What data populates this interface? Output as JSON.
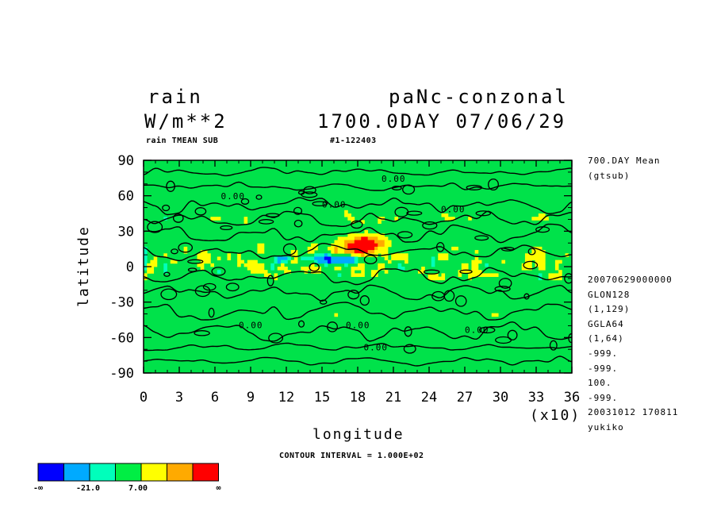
{
  "header": {
    "var_name": "rain",
    "units": "W/m**2",
    "run_name": "paNc-conzonal",
    "time_label": "1700.0DAY 07/06/29",
    "sub_title": "rain TMEAN SUB",
    "run_id": "#1-122403"
  },
  "side_top": [
    "700.DAY Mean",
    "(gtsub)"
  ],
  "side_meta": [
    "20070629000000",
    "GLON128",
    "(1,129)",
    "GGLA64",
    "(1,64)",
    "-999.",
    "-999.",
    "100.",
    "-999.",
    "20031012 170811",
    "yukiko"
  ],
  "contour_note": "CONTOUR INTERVAL = 1.000E+02",
  "colors": {
    "background": "#ffffff",
    "ocean_green": "#00e24a",
    "levels": [
      "#0000ff",
      "#00aaff",
      "#00ffbb",
      "#00ee44",
      "#ffff00",
      "#ffaa00",
      "#ff0000"
    ]
  },
  "chart_data": {
    "type": "heatmap",
    "title": "rain",
    "subtitle": "rain TMEAN SUB",
    "xlabel": "longitude",
    "ylabel": "latitude",
    "x_multiplier": "(x10)",
    "xlim": [
      0,
      36
    ],
    "ylim": [
      -90,
      90
    ],
    "x_ticks": [
      "0",
      "3",
      "6",
      "9",
      "12",
      "15",
      "18",
      "21",
      "24",
      "27",
      "30",
      "33",
      "36"
    ],
    "y_ticks": [
      "90",
      "60",
      "30",
      "0",
      "-30",
      "-60",
      "-90"
    ],
    "contour_labels": [
      {
        "text": "0.00",
        "lon": 20,
        "lat": 72
      },
      {
        "text": "0.00",
        "lon": 6.5,
        "lat": 57
      },
      {
        "text": "0.00",
        "lon": 15,
        "lat": 50
      },
      {
        "text": "0.00",
        "lon": 25,
        "lat": 46
      },
      {
        "text": "0.00",
        "lon": 8,
        "lat": -52
      },
      {
        "text": "0.00",
        "lon": 17,
        "lat": -52
      },
      {
        "text": "0.00",
        "lon": 27,
        "lat": -56
      },
      {
        "text": "0.00",
        "lon": 18.5,
        "lat": -71
      }
    ],
    "colorbar": {
      "colors": [
        "#0000ff",
        "#00aaff",
        "#00ffbb",
        "#00ee44",
        "#ffff00",
        "#ffaa00",
        "#ff0000"
      ],
      "labels": [
        "-∞",
        "-21.0",
        "7.00",
        "∞"
      ]
    },
    "features": [
      {
        "name": "max-rain-west-pacific",
        "lon": 18.5,
        "lat": 18,
        "level": 6
      },
      {
        "name": "min-rain-equator",
        "lon": 16.5,
        "lat": 6,
        "level": 0
      }
    ]
  }
}
